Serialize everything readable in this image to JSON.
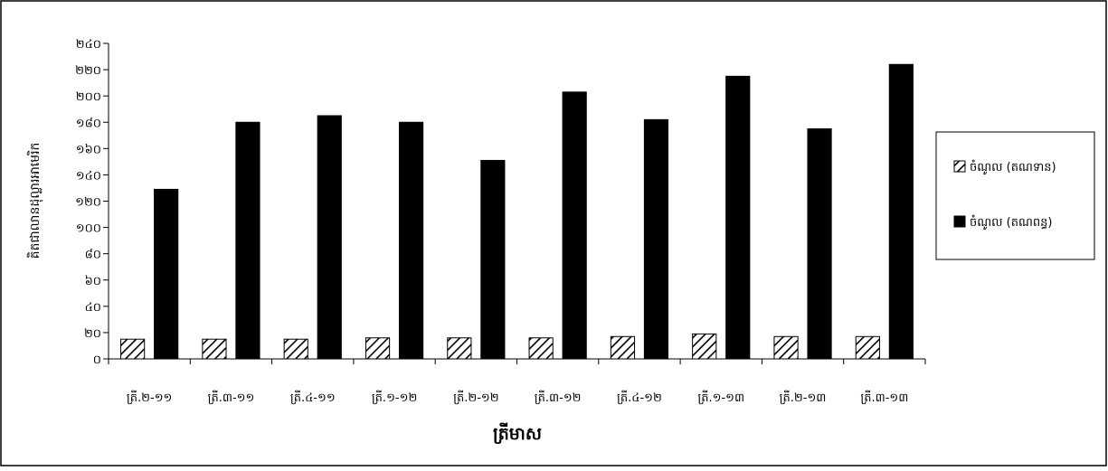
{
  "chart_data": {
    "type": "bar",
    "title": "",
    "xlabel": "ត្រីមាស",
    "ylabel": "គិតជាលានដុល្លារអាមេរិក",
    "ylim": [
      0,
      240
    ],
    "ytick_step": 20,
    "ytick_labels": [
      "០",
      "២០",
      "៤០",
      "៦០",
      "៨០",
      "១០០",
      "១២០",
      "១៤០",
      "១៦០",
      "១៨០",
      "២០០",
      "២២០",
      "២៤០"
    ],
    "categories": [
      "ត្រី.២-១១",
      "ត្រី.៣-១១",
      "ត្រី.៤-១១",
      "ត្រី.១-១២",
      "ត្រី.២-១២",
      "ត្រី.៣-១២",
      "ត្រី.៤-១២",
      "ត្រី.១-១៣",
      "ត្រី.២-១៣",
      "ត្រី.៣-១៣"
    ],
    "series": [
      {
        "name": "ចំណូល (តណទាន)",
        "fill": "hatch",
        "color": "#000000",
        "values": [
          15,
          15,
          15,
          16,
          16,
          16,
          17,
          19,
          17,
          17
        ]
      },
      {
        "name": "ចំណូល (តណពន្ធ)",
        "fill": "solid",
        "color": "#000000",
        "values": [
          129,
          180,
          185,
          180,
          151,
          203,
          182,
          215,
          175,
          224
        ]
      }
    ],
    "legend_position": "right",
    "grid": false
  }
}
